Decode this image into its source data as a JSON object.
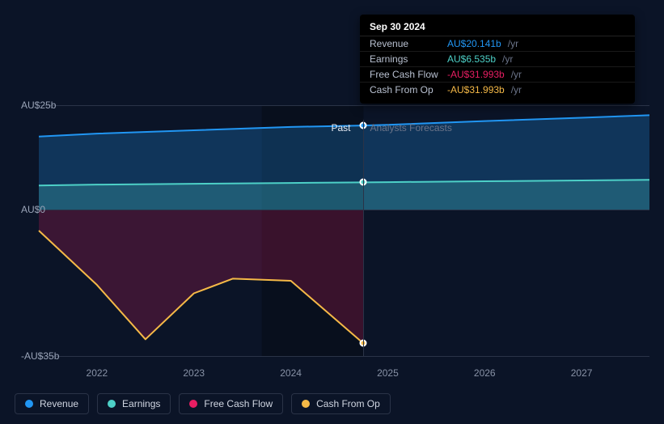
{
  "chart": {
    "type": "area-line",
    "background_color": "#0b1427",
    "grid_color": "#2a3347",
    "text_color": "#9aa4b8",
    "divider_label_past": "Past",
    "divider_label_forecast": "Analysts Forecasts",
    "y_axis": {
      "min": -35,
      "max": 25,
      "ticks": [
        {
          "value": 25,
          "label": "AU$25b"
        },
        {
          "value": 0,
          "label": "AU$0"
        },
        {
          "value": -35,
          "label": "-AU$35b"
        }
      ]
    },
    "x_axis": {
      "min": 2021.4,
      "max": 2027.7,
      "ticks": [
        {
          "value": 2022,
          "label": "2022"
        },
        {
          "value": 2023,
          "label": "2023"
        },
        {
          "value": 2024,
          "label": "2024"
        },
        {
          "value": 2025,
          "label": "2025"
        },
        {
          "value": 2026,
          "label": "2026"
        },
        {
          "value": 2027,
          "label": "2027"
        }
      ]
    },
    "divider_x": 2024.75,
    "past_shade_start_x": 2023.7,
    "series": [
      {
        "id": "revenue",
        "label": "Revenue",
        "color": "#2196f3",
        "fill_opacity": 0.25,
        "line_width": 2,
        "points": [
          {
            "x": 2021.4,
            "y": 17.5
          },
          {
            "x": 2022.0,
            "y": 18.2
          },
          {
            "x": 2023.0,
            "y": 19.0
          },
          {
            "x": 2024.0,
            "y": 19.8
          },
          {
            "x": 2024.75,
            "y": 20.141
          },
          {
            "x": 2025.0,
            "y": 20.3
          },
          {
            "x": 2026.0,
            "y": 21.2
          },
          {
            "x": 2027.0,
            "y": 22.0
          },
          {
            "x": 2027.7,
            "y": 22.6
          }
        ]
      },
      {
        "id": "earnings",
        "label": "Earnings",
        "color": "#4dd0c7",
        "fill_opacity": 0.25,
        "line_width": 2,
        "points": [
          {
            "x": 2021.4,
            "y": 5.8
          },
          {
            "x": 2022.0,
            "y": 6.0
          },
          {
            "x": 2023.0,
            "y": 6.2
          },
          {
            "x": 2024.0,
            "y": 6.4
          },
          {
            "x": 2024.75,
            "y": 6.535
          },
          {
            "x": 2025.0,
            "y": 6.6
          },
          {
            "x": 2026.0,
            "y": 6.8
          },
          {
            "x": 2027.0,
            "y": 7.0
          },
          {
            "x": 2027.7,
            "y": 7.15
          }
        ]
      },
      {
        "id": "free_cash_flow",
        "label": "Free Cash Flow",
        "color": "#e91e63",
        "fill_opacity": 0.22,
        "line_width": 0,
        "points": [
          {
            "x": 2021.4,
            "y": -5.0
          },
          {
            "x": 2022.0,
            "y": -18.0
          },
          {
            "x": 2022.5,
            "y": -31.0
          },
          {
            "x": 2023.0,
            "y": -20.0
          },
          {
            "x": 2023.4,
            "y": -16.5
          },
          {
            "x": 2024.0,
            "y": -17.0
          },
          {
            "x": 2024.75,
            "y": -31.993
          }
        ]
      },
      {
        "id": "cash_from_op",
        "label": "Cash From Op",
        "color": "#f5b947",
        "fill_opacity": 0,
        "line_width": 2,
        "points": [
          {
            "x": 2021.4,
            "y": -5.0
          },
          {
            "x": 2022.0,
            "y": -18.0
          },
          {
            "x": 2022.5,
            "y": -31.0
          },
          {
            "x": 2023.0,
            "y": -20.0
          },
          {
            "x": 2023.4,
            "y": -16.5
          },
          {
            "x": 2024.0,
            "y": -17.0
          },
          {
            "x": 2024.75,
            "y": -31.993
          }
        ]
      }
    ],
    "markers": [
      {
        "series": "revenue",
        "x": 2024.75,
        "y": 20.141,
        "color": "#2196f3"
      },
      {
        "series": "earnings",
        "x": 2024.75,
        "y": 6.535,
        "color": "#4dd0c7"
      },
      {
        "series": "cash_from_op",
        "x": 2024.75,
        "y": -31.993,
        "color": "#f5b947"
      }
    ]
  },
  "tooltip": {
    "date": "Sep 30 2024",
    "unit_suffix": "/yr",
    "rows": [
      {
        "label": "Revenue",
        "value": "AU$20.141b",
        "color": "#2196f3"
      },
      {
        "label": "Earnings",
        "value": "AU$6.535b",
        "color": "#4dd0c7"
      },
      {
        "label": "Free Cash Flow",
        "value": "-AU$31.993b",
        "color": "#e91e63"
      },
      {
        "label": "Cash From Op",
        "value": "-AU$31.993b",
        "color": "#f5b947"
      }
    ]
  },
  "legend": {
    "items": [
      {
        "label": "Revenue",
        "color": "#2196f3"
      },
      {
        "label": "Earnings",
        "color": "#4dd0c7"
      },
      {
        "label": "Free Cash Flow",
        "color": "#e91e63"
      },
      {
        "label": "Cash From Op",
        "color": "#f5b947"
      }
    ]
  }
}
